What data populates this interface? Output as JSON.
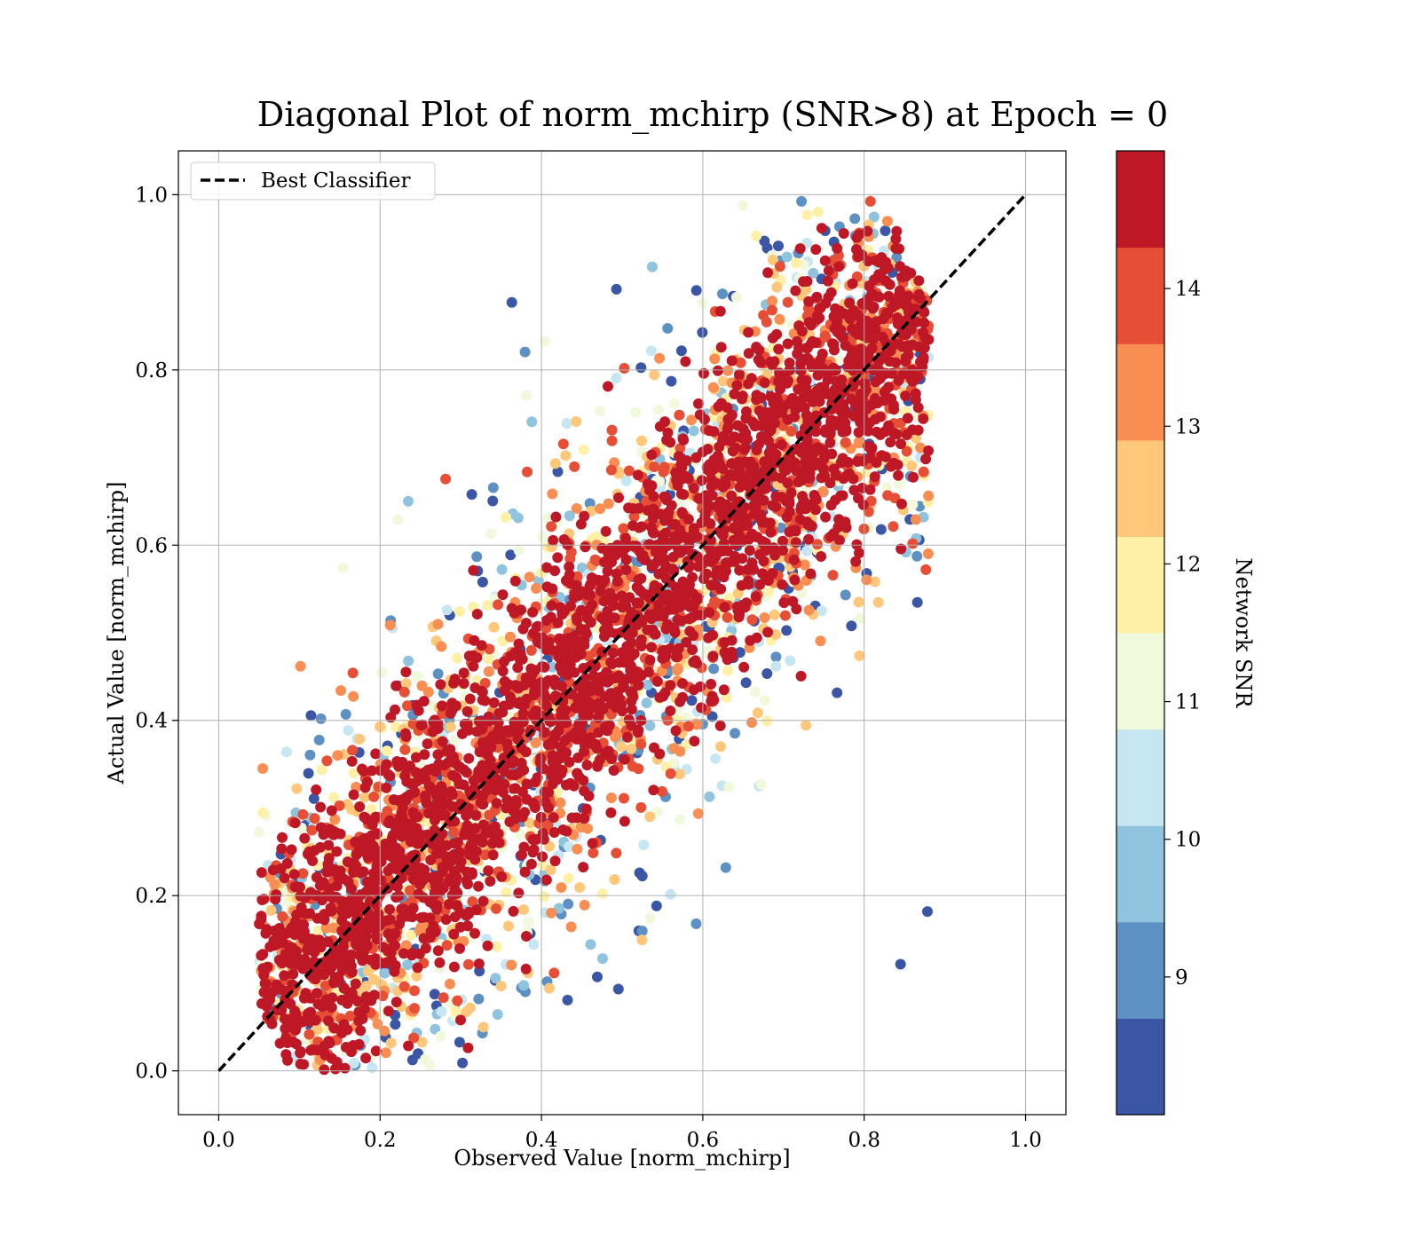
{
  "chart_data": {
    "type": "scatter",
    "title": "Diagonal Plot of norm_mchirp (SNR>8) at Epoch = 0",
    "xlabel": "Observed Value [norm_mchirp]",
    "ylabel": "Actual Value [norm_mchirp]",
    "xlim": [
      -0.05,
      1.05
    ],
    "ylim": [
      -0.05,
      1.05
    ],
    "x_ticks": [
      0.0,
      0.2,
      0.4,
      0.6,
      0.8,
      1.0
    ],
    "y_ticks": [
      0.0,
      0.2,
      0.4,
      0.6,
      0.8,
      1.0
    ],
    "x_tick_labels": [
      "0.0",
      "0.2",
      "0.4",
      "0.6",
      "0.8",
      "1.0"
    ],
    "y_tick_labels": [
      "0.0",
      "0.2",
      "0.4",
      "0.6",
      "0.8",
      "1.0"
    ],
    "grid": true,
    "legend": {
      "placement": "top-left",
      "entries": [
        {
          "label": "Best Classifier",
          "style": "dashed",
          "color": "#000000"
        }
      ]
    },
    "reference_line": {
      "name": "Best Classifier",
      "x": [
        0.0,
        1.0
      ],
      "y": [
        0.0,
        1.0
      ]
    },
    "colorbar": {
      "label": "Network SNR",
      "range": [
        8,
        15
      ],
      "ticks": [
        9,
        10,
        11,
        12,
        13,
        14
      ],
      "tick_labels": [
        "9",
        "10",
        "11",
        "12",
        "13",
        "14"
      ],
      "colors": [
        "#313695",
        "#4575b4",
        "#74add1",
        "#abd9e9",
        "#e0f3f8",
        "#ffffbf",
        "#fee090",
        "#fdae61",
        "#f46d43",
        "#d73027",
        "#a50026"
      ],
      "bands": 10
    },
    "scatter_summary": {
      "point_count": "dense",
      "x_range": [
        0.05,
        0.88
      ],
      "y_range": [
        0.0,
        1.0
      ],
      "trend": "points cluster along the diagonal y = x; high-SNR points (dark red) tightly on the diagonal, lower-SNR points spread wider"
    }
  }
}
